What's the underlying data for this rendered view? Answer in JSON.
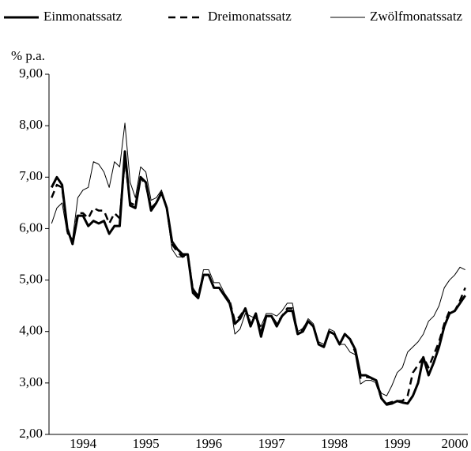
{
  "chart_data": {
    "type": "line",
    "y_axis_label": "% p.a.",
    "categories": [
      null,
      null,
      null,
      null,
      null,
      null,
      "1994",
      null,
      null,
      null,
      null,
      null,
      null,
      null,
      null,
      null,
      null,
      null,
      "1995",
      null,
      null,
      null,
      null,
      null,
      null,
      null,
      null,
      null,
      null,
      null,
      "1996",
      null,
      null,
      null,
      null,
      null,
      null,
      null,
      null,
      null,
      null,
      null,
      "1997",
      null,
      null,
      null,
      null,
      null,
      null,
      null,
      null,
      null,
      null,
      null,
      "1998",
      null,
      null,
      null,
      null,
      null,
      null,
      null,
      null,
      null,
      null,
      null,
      "1999",
      null,
      null,
      null,
      null,
      null,
      null,
      null,
      null,
      null,
      null,
      "2000",
      null,
      null
    ],
    "series": [
      {
        "name": "Einmonatssatz",
        "color": "#000000",
        "line_width": 3,
        "dash": null,
        "values": [
          6.8,
          7.0,
          6.85,
          6.0,
          5.7,
          6.25,
          6.25,
          6.05,
          6.15,
          6.1,
          6.15,
          5.9,
          6.05,
          6.05,
          7.5,
          6.45,
          6.4,
          7.0,
          6.9,
          6.35,
          6.5,
          6.7,
          6.4,
          5.75,
          5.6,
          5.5,
          5.5,
          4.75,
          4.65,
          5.1,
          5.1,
          4.85,
          4.85,
          4.7,
          4.55,
          4.15,
          4.25,
          4.45,
          4.1,
          4.35,
          3.9,
          4.3,
          4.3,
          4.1,
          4.3,
          4.4,
          4.4,
          3.95,
          4.0,
          4.2,
          4.1,
          3.75,
          3.7,
          4.0,
          3.95,
          3.75,
          3.95,
          3.85,
          3.65,
          3.15,
          3.15,
          3.1,
          3.05,
          2.7,
          2.58,
          2.6,
          2.65,
          2.62,
          2.6,
          2.75,
          3.0,
          3.5,
          3.15,
          3.4,
          3.7,
          4.1,
          4.35,
          4.4,
          4.55,
          4.7
        ]
      },
      {
        "name": "Dreimonatssatz",
        "color": "#000000",
        "line_width": 2.5,
        "dash": "9,6",
        "values": [
          6.6,
          6.85,
          6.8,
          5.95,
          5.75,
          6.3,
          6.3,
          6.2,
          6.4,
          6.35,
          6.35,
          6.1,
          6.3,
          6.2,
          7.35,
          6.5,
          6.45,
          7.0,
          6.85,
          6.4,
          6.5,
          6.7,
          6.4,
          5.7,
          5.55,
          5.45,
          5.5,
          4.8,
          4.7,
          5.1,
          5.1,
          4.85,
          4.85,
          4.7,
          4.6,
          4.2,
          4.3,
          4.45,
          4.15,
          4.35,
          4.0,
          4.3,
          4.3,
          4.15,
          4.3,
          4.45,
          4.45,
          3.98,
          4.05,
          4.2,
          4.1,
          3.75,
          3.7,
          4.0,
          3.95,
          3.75,
          3.95,
          3.85,
          3.6,
          3.1,
          3.12,
          3.1,
          3.0,
          2.7,
          2.6,
          2.63,
          2.65,
          2.65,
          2.75,
          3.2,
          3.35,
          3.5,
          3.3,
          3.55,
          3.8,
          4.15,
          4.4,
          4.4,
          4.6,
          4.85
        ]
      },
      {
        "name": "Zwölfmonatssatz",
        "color": "#000000",
        "line_width": 1,
        "dash": null,
        "values": [
          6.1,
          6.4,
          6.5,
          5.9,
          5.8,
          6.6,
          6.75,
          6.8,
          7.3,
          7.25,
          7.1,
          6.8,
          7.3,
          7.2,
          8.05,
          6.9,
          6.6,
          7.2,
          7.1,
          6.55,
          6.6,
          6.75,
          6.35,
          5.6,
          5.45,
          5.45,
          5.5,
          4.85,
          4.7,
          5.2,
          5.2,
          4.95,
          4.95,
          4.75,
          4.6,
          3.95,
          4.05,
          4.35,
          4.3,
          4.25,
          4.1,
          4.35,
          4.35,
          4.3,
          4.4,
          4.55,
          4.55,
          4.0,
          4.05,
          4.25,
          4.15,
          3.8,
          3.75,
          4.05,
          4.0,
          3.75,
          3.75,
          3.6,
          3.55,
          2.98,
          3.05,
          3.05,
          3.0,
          2.8,
          2.75,
          2.95,
          3.2,
          3.3,
          3.6,
          3.7,
          3.8,
          3.95,
          4.2,
          4.3,
          4.5,
          4.85,
          5.0,
          5.1,
          5.25,
          5.2
        ]
      }
    ],
    "ylim": [
      2,
      9
    ],
    "yticks": [
      {
        "value": 2,
        "label": "2,00"
      },
      {
        "value": 3,
        "label": "3,00"
      },
      {
        "value": 4,
        "label": "4,00"
      },
      {
        "value": 5,
        "label": "5,00"
      },
      {
        "value": 6,
        "label": "6,00"
      },
      {
        "value": 7,
        "label": "7,00"
      },
      {
        "value": 8,
        "label": "8,00"
      },
      {
        "value": 9,
        "label": "9,00"
      }
    ],
    "grid": false
  }
}
